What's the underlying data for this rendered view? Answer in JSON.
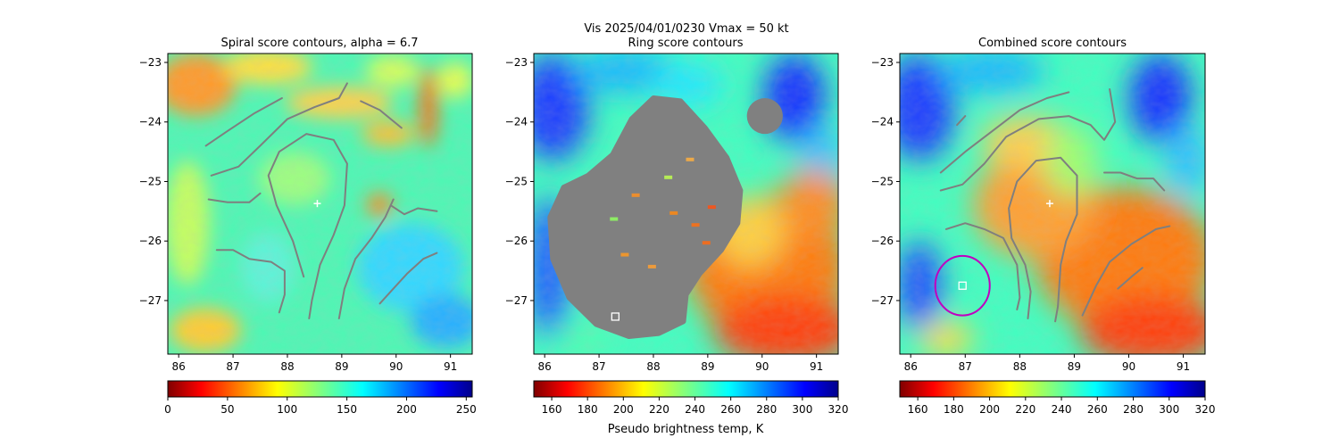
{
  "figure": {
    "suptitle": "Vis  2025/04/01/0230    Vmax = 50 kt",
    "colorbar_label": "Pseudo brightness temp, K"
  },
  "colors": {
    "contour": "#7f7f7f",
    "ring_mask": "#808080",
    "circle": "#c000c0",
    "marker": "#ffffff"
  },
  "chart_data": [
    {
      "type": "heatmap",
      "title": "Spiral score contours, alpha =  6.7",
      "xlim": [
        85.8,
        91.4
      ],
      "ylim": [
        -27.9,
        -22.85
      ],
      "xticks": [
        "86",
        "87",
        "88",
        "89",
        "90",
        "91"
      ],
      "yticks": [
        "−23",
        "−24",
        "−25",
        "−26",
        "−27"
      ],
      "colorbar": {
        "colormap": "jet_r",
        "range": [
          0,
          255
        ],
        "ticks": [
          "0",
          "50",
          "100",
          "150",
          "200",
          "250"
        ]
      },
      "center_marker": {
        "lon": 88.55,
        "lat": -25.37,
        "symbol": "plus"
      },
      "contours": [
        [
          [
            86.5,
            -24.4
          ],
          [
            86.9,
            -24.15
          ],
          [
            87.4,
            -23.85
          ],
          [
            87.9,
            -23.6
          ]
        ],
        [
          [
            86.6,
            -24.9
          ],
          [
            87.1,
            -24.75
          ],
          [
            87.5,
            -24.4
          ],
          [
            88.0,
            -23.95
          ],
          [
            88.5,
            -23.75
          ],
          [
            88.95,
            -23.6
          ],
          [
            89.1,
            -23.35
          ]
        ],
        [
          [
            88.3,
            -26.6
          ],
          [
            88.1,
            -26.0
          ],
          [
            87.8,
            -25.4
          ],
          [
            87.65,
            -24.9
          ],
          [
            87.85,
            -24.5
          ],
          [
            88.35,
            -24.2
          ],
          [
            88.85,
            -24.3
          ],
          [
            89.1,
            -24.7
          ],
          [
            89.05,
            -25.4
          ],
          [
            88.85,
            -25.9
          ],
          [
            88.6,
            -26.4
          ],
          [
            88.45,
            -27.0
          ],
          [
            88.4,
            -27.3
          ]
        ],
        [
          [
            88.95,
            -27.3
          ],
          [
            89.05,
            -26.8
          ],
          [
            89.25,
            -26.3
          ],
          [
            89.55,
            -25.95
          ],
          [
            89.8,
            -25.6
          ],
          [
            89.95,
            -25.3
          ]
        ],
        [
          [
            89.9,
            -25.4
          ],
          [
            90.15,
            -25.55
          ],
          [
            90.4,
            -25.45
          ],
          [
            90.75,
            -25.5
          ]
        ],
        [
          [
            89.7,
            -27.05
          ],
          [
            89.95,
            -26.8
          ],
          [
            90.2,
            -26.55
          ],
          [
            90.5,
            -26.3
          ],
          [
            90.75,
            -26.2
          ]
        ],
        [
          [
            86.55,
            -25.3
          ],
          [
            86.9,
            -25.35
          ],
          [
            87.3,
            -25.35
          ],
          [
            87.5,
            -25.2
          ]
        ],
        [
          [
            86.7,
            -26.15
          ],
          [
            87.0,
            -26.15
          ],
          [
            87.3,
            -26.3
          ],
          [
            87.7,
            -26.35
          ],
          [
            87.95,
            -26.5
          ],
          [
            87.95,
            -26.9
          ],
          [
            87.85,
            -27.2
          ]
        ],
        [
          [
            89.35,
            -23.65
          ],
          [
            89.7,
            -23.8
          ],
          [
            90.1,
            -24.1
          ]
        ]
      ]
    },
    {
      "type": "heatmap",
      "title": "Ring score contours",
      "xlim": [
        85.8,
        91.4
      ],
      "ylim": [
        -27.9,
        -22.85
      ],
      "xticks": [
        "86",
        "87",
        "88",
        "89",
        "90",
        "91"
      ],
      "yticks": [
        "−23",
        "−24",
        "−25",
        "−26",
        "−27"
      ],
      "colorbar": {
        "colormap": "jet_r",
        "range": [
          150,
          320
        ],
        "ticks": [
          "160",
          "180",
          "200",
          "220",
          "240",
          "260",
          "280",
          "300",
          "320"
        ]
      },
      "ring_mask_outline": [
        [
          86.35,
          -25.1
        ],
        [
          86.8,
          -24.9
        ],
        [
          87.25,
          -24.55
        ],
        [
          87.6,
          -23.95
        ],
        [
          88.0,
          -23.6
        ],
        [
          88.5,
          -23.65
        ],
        [
          88.95,
          -24.1
        ],
        [
          89.35,
          -24.6
        ],
        [
          89.6,
          -25.15
        ],
        [
          89.55,
          -25.7
        ],
        [
          89.25,
          -26.15
        ],
        [
          88.85,
          -26.55
        ],
        [
          88.6,
          -26.9
        ],
        [
          88.55,
          -27.35
        ],
        [
          88.1,
          -27.55
        ],
        [
          87.55,
          -27.6
        ],
        [
          86.95,
          -27.4
        ],
        [
          86.45,
          -26.95
        ],
        [
          86.15,
          -26.3
        ],
        [
          86.1,
          -25.6
        ]
      ],
      "ring_mask_blob": {
        "lon": 90.05,
        "lat": -23.9,
        "rx": 0.33,
        "ry": 0.3
      },
      "box_marker": {
        "lon": 87.3,
        "lat": -27.27
      }
    },
    {
      "type": "heatmap",
      "title": "Combined score contours",
      "xlim": [
        85.8,
        91.4
      ],
      "ylim": [
        -27.9,
        -22.85
      ],
      "xticks": [
        "86",
        "87",
        "88",
        "89",
        "90",
        "91"
      ],
      "yticks": [
        "−23",
        "−24",
        "−25",
        "−26",
        "−27"
      ],
      "colorbar": {
        "colormap": "jet_r",
        "range": [
          150,
          320
        ],
        "ticks": [
          "160",
          "180",
          "200",
          "220",
          "240",
          "260",
          "280",
          "300",
          "320"
        ]
      },
      "center_marker": {
        "lon": 88.55,
        "lat": -25.37,
        "symbol": "plus"
      },
      "box_marker": {
        "lon": 86.95,
        "lat": -26.75
      },
      "circle": {
        "lon": 86.95,
        "lat": -26.75,
        "radius_deg": 0.5
      },
      "contours": [
        [
          [
            86.55,
            -24.85
          ],
          [
            87.0,
            -24.5
          ],
          [
            87.5,
            -24.15
          ],
          [
            88.0,
            -23.8
          ],
          [
            88.5,
            -23.6
          ],
          [
            88.9,
            -23.5
          ]
        ],
        [
          [
            86.55,
            -25.15
          ],
          [
            86.95,
            -25.05
          ],
          [
            87.35,
            -24.7
          ],
          [
            87.75,
            -24.25
          ],
          [
            88.35,
            -23.95
          ],
          [
            88.9,
            -23.9
          ],
          [
            89.3,
            -24.05
          ],
          [
            89.55,
            -24.3
          ],
          [
            89.75,
            -24.0
          ],
          [
            89.65,
            -23.45
          ]
        ],
        [
          [
            88.15,
            -27.3
          ],
          [
            88.2,
            -26.85
          ],
          [
            88.1,
            -26.4
          ],
          [
            87.85,
            -25.95
          ],
          [
            87.8,
            -25.45
          ],
          [
            87.95,
            -25.0
          ],
          [
            88.3,
            -24.65
          ],
          [
            88.75,
            -24.6
          ],
          [
            89.05,
            -24.9
          ],
          [
            89.05,
            -25.55
          ],
          [
            88.85,
            -26.0
          ],
          [
            88.75,
            -26.4
          ],
          [
            88.7,
            -27.1
          ],
          [
            88.65,
            -27.35
          ]
        ],
        [
          [
            86.65,
            -25.8
          ],
          [
            87.0,
            -25.7
          ],
          [
            87.35,
            -25.8
          ],
          [
            87.7,
            -25.95
          ],
          [
            87.95,
            -26.4
          ],
          [
            88.0,
            -26.95
          ],
          [
            87.95,
            -27.15
          ]
        ],
        [
          [
            89.15,
            -27.25
          ],
          [
            89.4,
            -26.75
          ],
          [
            89.65,
            -26.35
          ],
          [
            90.05,
            -26.05
          ],
          [
            90.5,
            -25.8
          ],
          [
            90.75,
            -25.75
          ]
        ],
        [
          [
            89.55,
            -24.85
          ],
          [
            89.85,
            -24.85
          ],
          [
            90.15,
            -24.95
          ],
          [
            90.45,
            -24.95
          ],
          [
            90.65,
            -25.15
          ]
        ],
        [
          [
            89.8,
            -26.8
          ],
          [
            90.05,
            -26.6
          ],
          [
            90.25,
            -26.45
          ]
        ],
        [
          [
            86.85,
            -24.05
          ],
          [
            87.0,
            -23.9
          ]
        ]
      ]
    }
  ]
}
